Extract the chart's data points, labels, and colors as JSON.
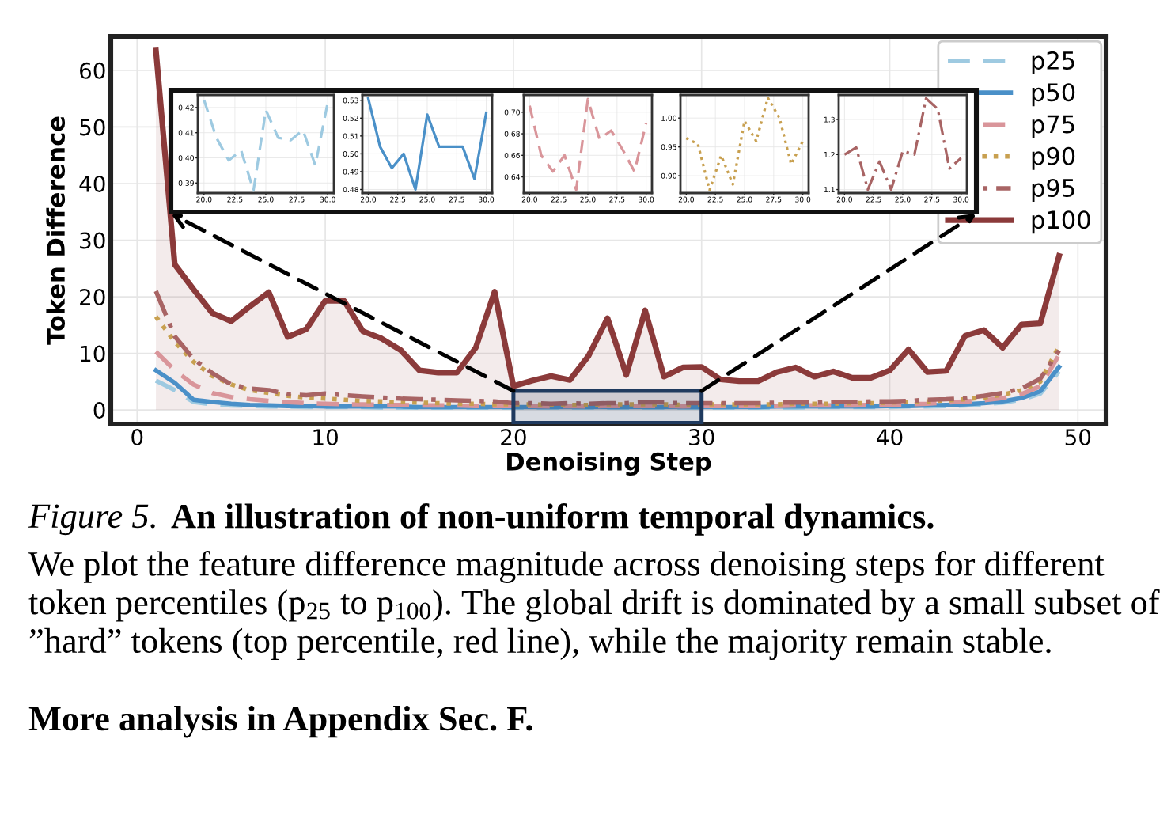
{
  "chart_data": [
    {
      "type": "line",
      "xlabel": "Denoising Step",
      "ylabel": "Token Difference",
      "x": [
        1,
        2,
        3,
        4,
        5,
        6,
        7,
        8,
        9,
        10,
        11,
        12,
        13,
        14,
        15,
        16,
        17,
        18,
        19,
        20,
        21,
        22,
        23,
        24,
        25,
        26,
        27,
        28,
        29,
        30,
        31,
        32,
        33,
        34,
        35,
        36,
        37,
        38,
        39,
        40,
        41,
        42,
        43,
        44,
        45,
        46,
        47,
        48,
        49
      ],
      "xlim": [
        -1.4,
        51.5
      ],
      "ylim": [
        -2.5,
        66
      ],
      "xticks": [
        0,
        10,
        20,
        30,
        40,
        50
      ],
      "yticks": [
        0,
        10,
        20,
        30,
        40,
        50,
        60
      ],
      "grid": true,
      "legend": "top right",
      "series": [
        {
          "name": "p25",
          "color": "#9ecae1",
          "line_style": "dashed",
          "values": [
            5.2,
            3.5,
            1.4,
            1.0,
            0.8,
            0.7,
            0.6,
            0.6,
            0.5,
            0.5,
            0.5,
            0.5,
            0.4,
            0.4,
            0.4,
            0.4,
            0.4,
            0.4,
            0.4,
            0.4,
            0.4,
            0.4,
            0.4,
            0.4,
            0.4,
            0.4,
            0.4,
            0.4,
            0.4,
            0.4,
            0.4,
            0.4,
            0.4,
            0.4,
            0.4,
            0.5,
            0.5,
            0.5,
            0.5,
            0.5,
            0.6,
            0.6,
            0.7,
            0.8,
            1.0,
            1.3,
            1.8,
            2.9,
            6.8
          ]
        },
        {
          "name": "p50",
          "color": "#4a90c8",
          "line_style": "solid",
          "values": [
            7.0,
            4.8,
            1.8,
            1.4,
            1.1,
            0.9,
            0.8,
            0.7,
            0.7,
            0.6,
            0.6,
            0.6,
            0.6,
            0.6,
            0.5,
            0.5,
            0.5,
            0.5,
            0.5,
            0.5,
            0.5,
            0.5,
            0.5,
            0.5,
            0.5,
            0.5,
            0.5,
            0.5,
            0.5,
            0.5,
            0.5,
            0.5,
            0.5,
            0.6,
            0.6,
            0.6,
            0.6,
            0.6,
            0.6,
            0.7,
            0.7,
            0.8,
            0.9,
            1.0,
            1.2,
            1.5,
            2.1,
            3.3,
            7.6
          ]
        },
        {
          "name": "p75",
          "color": "#d9959a",
          "line_style": "dashed",
          "values": [
            10.3,
            7.0,
            4.5,
            3.0,
            2.3,
            1.9,
            1.6,
            1.4,
            1.2,
            1.1,
            1.0,
            1.0,
            0.9,
            0.9,
            0.8,
            0.8,
            0.8,
            0.7,
            0.7,
            0.7,
            0.7,
            0.6,
            0.7,
            0.6,
            0.7,
            0.7,
            0.7,
            0.7,
            0.6,
            0.7,
            0.7,
            0.7,
            0.7,
            0.7,
            0.8,
            0.8,
            0.8,
            0.8,
            0.9,
            0.9,
            1.0,
            1.1,
            1.3,
            1.5,
            1.7,
            2.1,
            2.8,
            4.2,
            9.7
          ]
        },
        {
          "name": "p90",
          "color": "#c8a050",
          "line_style": "dotted",
          "values": [
            16.5,
            12.0,
            8.5,
            6.0,
            4.5,
            3.5,
            3.0,
            2.5,
            2.2,
            2.0,
            1.8,
            1.6,
            1.5,
            1.4,
            1.3,
            1.2,
            1.1,
            1.1,
            1.0,
            1.0,
            1.0,
            0.9,
            0.9,
            0.9,
            1.0,
            1.0,
            1.0,
            1.0,
            0.9,
            1.0,
            1.0,
            1.0,
            1.0,
            1.0,
            1.1,
            1.1,
            1.1,
            1.2,
            1.2,
            1.3,
            1.4,
            1.5,
            1.7,
            1.9,
            2.2,
            2.7,
            3.5,
            5.0,
            11.3
          ]
        },
        {
          "name": "p95",
          "color": "#a86464",
          "line_style": "dashdot",
          "values": [
            21.0,
            13.0,
            9.0,
            6.5,
            4.5,
            3.8,
            3.5,
            2.8,
            2.6,
            2.9,
            2.6,
            2.4,
            2.2,
            2.0,
            1.9,
            1.8,
            1.7,
            1.6,
            1.5,
            1.2,
            1.2,
            1.1,
            1.2,
            1.1,
            1.2,
            1.2,
            1.4,
            1.3,
            1.2,
            1.2,
            1.2,
            1.2,
            1.2,
            1.3,
            1.3,
            1.3,
            1.4,
            1.4,
            1.5,
            1.5,
            1.6,
            1.8,
            1.9,
            2.1,
            2.5,
            3.0,
            3.8,
            5.5,
            10.5
          ]
        },
        {
          "name": "p100",
          "type": "area",
          "color": "#8b3a3a",
          "line_style": "solid",
          "values": [
            63.5,
            25.7,
            21.3,
            17.1,
            15.7,
            18.3,
            20.8,
            12.9,
            14.3,
            19.3,
            19.3,
            13.9,
            12.6,
            10.6,
            7.0,
            6.6,
            6.6,
            11.0,
            20.9,
            4.2,
            5.2,
            6.0,
            5.3,
            9.6,
            16.2,
            6.2,
            17.6,
            5.9,
            7.5,
            7.6,
            5.4,
            5.1,
            5.1,
            6.7,
            7.5,
            5.9,
            6.8,
            5.7,
            5.7,
            7.0,
            10.7,
            6.7,
            6.9,
            13.1,
            14.1,
            11.0,
            15.1,
            15.3,
            27.2
          ]
        }
      ],
      "annotations": [
        "Figure 5.",
        "An illustration of non-uniform temporal dynamics.",
        "We plot the feature difference magnitude across denoising steps for different token percentiles (p$_{25}$ to p$_{100}$). The global drift is dominated by a small subset of ”hard” tokens (top percentile, red line), while the majority remain stable.",
        "More analysis in Appendix Sec. F."
      ]
    },
    {
      "type": "line",
      "x": [
        20,
        21,
        22,
        23,
        24,
        25,
        26,
        27,
        28,
        29,
        30
      ],
      "xlim": [
        19.5,
        30.5
      ],
      "ylim": [
        0.386,
        0.425
      ],
      "grid": true,
      "xticks": [
        {
          "value": 20,
          "label": "20.0"
        },
        22.5,
        {
          "value": 25,
          "label": "25.0"
        },
        27.5,
        {
          "value": 30,
          "label": "30.0"
        }
      ],
      "yticks": [
        {
          "value": 0.39,
          "label": "0.39"
        },
        {
          "value": 0.4,
          "label": "0.40"
        },
        0.41,
        0.42
      ],
      "series": [
        {
          "color": "#9ecae1",
          "line_style": "dashed",
          "values": [
            0.423,
            0.408,
            0.399,
            0.403,
            0.387,
            0.419,
            0.408,
            0.407,
            0.411,
            0.397,
            0.422
          ]
        }
      ]
    },
    {
      "type": "line",
      "x": [
        20,
        21,
        22,
        23,
        24,
        25,
        26,
        27,
        28,
        29,
        30
      ],
      "xlim": [
        19.5,
        30.5
      ],
      "ylim": [
        0.478,
        0.533
      ],
      "grid": true,
      "xticks": [
        {
          "value": 20,
          "label": "20.0"
        },
        22.5,
        {
          "value": 25,
          "label": "25.0"
        },
        27.5,
        {
          "value": 30,
          "label": "30.0"
        }
      ],
      "yticks": [
        0.48,
        0.49,
        {
          "value": 0.5,
          "label": "0.50"
        },
        0.51,
        0.52,
        0.53
      ],
      "series": [
        {
          "color": "#4a90c8",
          "line_style": "solid",
          "values": [
            0.531,
            0.504,
            0.492,
            0.5,
            0.48,
            0.522,
            0.504,
            0.504,
            0.504,
            0.486,
            0.523
          ]
        }
      ]
    },
    {
      "type": "line",
      "x": [
        20,
        21,
        22,
        23,
        24,
        25,
        26,
        27,
        28,
        29,
        30
      ],
      "xlim": [
        19.5,
        30.5
      ],
      "ylim": [
        0.625,
        0.716
      ],
      "grid": true,
      "xticks": [
        {
          "value": 20,
          "label": "20.0"
        },
        22.5,
        {
          "value": 25,
          "label": "25.0"
        },
        27.5,
        {
          "value": 30,
          "label": "30.0"
        }
      ],
      "yticks": [
        0.64,
        0.66,
        0.68,
        {
          "value": 0.7,
          "label": "0.70"
        }
      ],
      "series": [
        {
          "color": "#d9959a",
          "line_style": "dashed",
          "values": [
            0.706,
            0.66,
            0.645,
            0.66,
            0.628,
            0.712,
            0.675,
            0.683,
            0.665,
            0.645,
            0.69
          ]
        }
      ]
    },
    {
      "type": "line",
      "x": [
        20,
        21,
        22,
        23,
        24,
        25,
        26,
        27,
        28,
        29,
        30
      ],
      "xlim": [
        19.5,
        30.5
      ],
      "ylim": [
        0.87,
        1.04
      ],
      "grid": true,
      "xticks": [
        {
          "value": 20,
          "label": "20.0"
        },
        22.5,
        {
          "value": 25,
          "label": "25.0"
        },
        27.5,
        {
          "value": 30,
          "label": "30.0"
        }
      ],
      "yticks": [
        {
          "value": 0.9,
          "label": "0.90"
        },
        0.95,
        {
          "value": 1.0,
          "label": "1.00"
        }
      ],
      "series": [
        {
          "color": "#c8a050",
          "line_style": "dotted",
          "values": [
            0.965,
            0.955,
            0.875,
            0.935,
            0.885,
            0.995,
            0.96,
            1.035,
            1.0,
            0.92,
            0.96
          ]
        }
      ]
    },
    {
      "type": "line",
      "x": [
        20,
        21,
        22,
        23,
        24,
        25,
        26,
        27,
        28,
        29,
        30
      ],
      "xlim": [
        19.5,
        30.5
      ],
      "ylim": [
        1.09,
        1.37
      ],
      "grid": true,
      "xticks": [
        {
          "value": 20,
          "label": "20.0"
        },
        22.5,
        {
          "value": 25,
          "label": "25.0"
        },
        27.5,
        {
          "value": 30,
          "label": "30.0"
        }
      ],
      "yticks": [
        1.1,
        1.2,
        1.3
      ],
      "series": [
        {
          "color": "#a86464",
          "line_style": "dashdot",
          "values": [
            1.2,
            1.22,
            1.1,
            1.18,
            1.1,
            1.21,
            1.2,
            1.36,
            1.33,
            1.16,
            1.19
          ]
        }
      ]
    }
  ]
}
